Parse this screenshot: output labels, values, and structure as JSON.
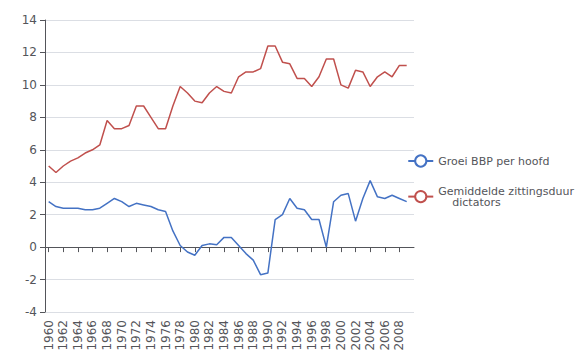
{
  "chart_data": {
    "type": "line",
    "x": [
      1960,
      1961,
      1962,
      1963,
      1964,
      1965,
      1966,
      1967,
      1968,
      1969,
      1970,
      1971,
      1972,
      1973,
      1974,
      1975,
      1976,
      1977,
      1978,
      1979,
      1980,
      1981,
      1982,
      1983,
      1984,
      1985,
      1986,
      1987,
      1988,
      1989,
      1990,
      1991,
      1992,
      1993,
      1994,
      1995,
      1996,
      1997,
      1998,
      1999,
      2000,
      2001,
      2002,
      2003,
      2004,
      2005,
      2006,
      2007,
      2008,
      2009
    ],
    "series": [
      {
        "name": "Groei BBP per hoofd",
        "color": "#4472C4",
        "values": [
          2.8,
          2.5,
          2.4,
          2.4,
          2.4,
          2.3,
          2.3,
          2.4,
          2.7,
          3.0,
          2.8,
          2.5,
          2.7,
          2.6,
          2.5,
          2.3,
          2.2,
          1.0,
          0.1,
          -0.3,
          -0.5,
          0.1,
          0.2,
          0.15,
          0.6,
          0.6,
          0.1,
          -0.4,
          -0.8,
          -1.7,
          -1.6,
          1.7,
          2.0,
          3.0,
          2.4,
          2.3,
          1.7,
          1.7,
          0.0,
          2.8,
          3.2,
          3.3,
          1.6,
          3.0,
          4.1,
          3.1,
          3.0,
          3.2,
          3.0,
          2.8
        ]
      },
      {
        "name": "Gemiddelde zittingsduur\n    dictators",
        "color": "#C0504D",
        "values": [
          5.0,
          4.6,
          5.0,
          5.3,
          5.5,
          5.8,
          6.0,
          6.3,
          7.8,
          7.3,
          7.3,
          7.5,
          8.7,
          8.7,
          8.0,
          7.3,
          7.3,
          8.7,
          9.9,
          9.5,
          9.0,
          8.9,
          9.5,
          9.9,
          9.6,
          9.5,
          10.5,
          10.8,
          10.8,
          11.0,
          12.4,
          12.4,
          11.4,
          11.3,
          10.4,
          10.4,
          9.9,
          10.5,
          11.6,
          11.6,
          10.0,
          9.8,
          10.9,
          10.8,
          9.9,
          10.5,
          10.8,
          10.5,
          11.2,
          11.2
        ]
      }
    ],
    "xlim": [
      1959.5,
      2010.0
    ],
    "xticks": [
      1960,
      1962,
      1964,
      1966,
      1968,
      1970,
      1972,
      1974,
      1976,
      1978,
      1980,
      1982,
      1984,
      1986,
      1988,
      1990,
      1992,
      1994,
      1996,
      1998,
      2000,
      2002,
      2004,
      2006,
      2008
    ],
    "ylim": [
      -4,
      14
    ],
    "yticks": [
      -4,
      -2,
      0,
      2,
      4,
      6,
      8,
      10,
      12,
      14
    ],
    "grid": true,
    "legend": "right"
  }
}
